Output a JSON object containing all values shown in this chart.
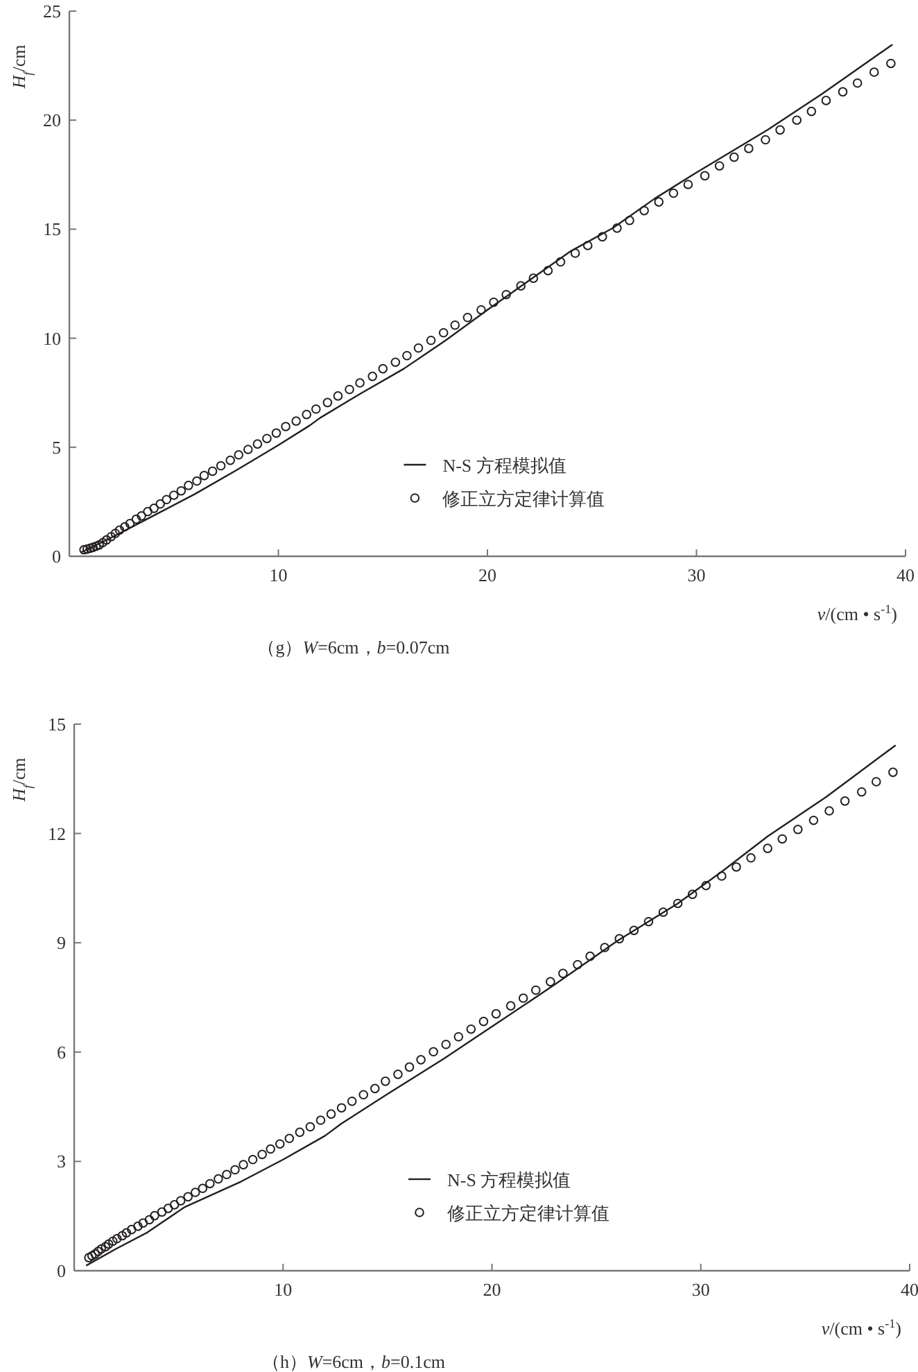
{
  "chart_data": [
    {
      "type": "line",
      "title": "（g）*W*=6cm，*b*=0.07cm",
      "xlabel": "*v*/(cm • s$^{-1}$)",
      "ylabel": "*H*$_{f}$/cm",
      "xlim": [
        0,
        40
      ],
      "ylim": [
        0,
        25
      ],
      "xticks": [
        10,
        20,
        30,
        40
      ],
      "yticks": [
        0,
        5,
        10,
        15,
        20,
        25
      ],
      "legend": "bottom",
      "series": [
        {
          "name": "N-S 方程模拟值",
          "color": "#231f20",
          "x": [
            0.6,
            2,
            4,
            6,
            8,
            10,
            11.5,
            12,
            14,
            16,
            18,
            20,
            22,
            24,
            26,
            28,
            30,
            33.4,
            36,
            39.35
          ],
          "values": [
            0.2,
            0.85,
            1.85,
            2.85,
            3.95,
            5.1,
            6.0,
            6.35,
            7.5,
            8.6,
            9.9,
            11.3,
            12.65,
            14.0,
            15.05,
            16.4,
            17.6,
            19.55,
            21.2,
            23.45
          ]
        },
        {
          "name": "修正立方定律计算值",
          "type": "scatter",
          "marker": "circle",
          "color": "#231f20",
          "x": [
            0.7,
            0.85,
            1.0,
            1.13,
            1.28,
            1.43,
            1.6,
            1.78,
            2.0,
            2.2,
            2.4,
            2.65,
            2.9,
            3.2,
            3.45,
            3.75,
            4.05,
            4.35,
            4.65,
            5.0,
            5.35,
            5.7,
            6.1,
            6.45,
            6.85,
            7.25,
            7.7,
            8.1,
            8.55,
            9.0,
            9.45,
            9.9,
            10.35,
            10.85,
            11.35,
            11.8,
            12.35,
            12.85,
            13.4,
            13.9,
            14.5,
            15.0,
            15.6,
            16.15,
            16.7,
            17.3,
            17.9,
            18.45,
            19.05,
            19.7,
            20.3,
            20.9,
            21.6,
            22.2,
            22.9,
            23.5,
            24.2,
            24.8,
            25.5,
            26.2,
            26.8,
            27.5,
            28.2,
            28.9,
            29.6,
            30.4,
            31.1,
            31.8,
            32.5,
            33.3,
            34.0,
            34.8,
            35.5,
            36.2,
            37.0,
            37.7,
            38.5,
            39.3
          ],
          "values": [
            0.3,
            0.33,
            0.37,
            0.41,
            0.46,
            0.52,
            0.63,
            0.75,
            0.9,
            1.05,
            1.2,
            1.35,
            1.5,
            1.7,
            1.85,
            2.05,
            2.2,
            2.4,
            2.6,
            2.8,
            3.0,
            3.25,
            3.45,
            3.7,
            3.9,
            4.15,
            4.4,
            4.65,
            4.9,
            5.15,
            5.4,
            5.65,
            5.95,
            6.2,
            6.5,
            6.75,
            7.05,
            7.35,
            7.65,
            7.95,
            8.25,
            8.6,
            8.9,
            9.2,
            9.55,
            9.9,
            10.25,
            10.6,
            10.95,
            11.3,
            11.65,
            12.0,
            12.4,
            12.75,
            13.1,
            13.5,
            13.9,
            14.25,
            14.65,
            15.05,
            15.4,
            15.85,
            16.25,
            16.65,
            17.05,
            17.45,
            17.9,
            18.3,
            18.7,
            19.1,
            19.55,
            20.0,
            20.4,
            20.9,
            21.3,
            21.7,
            22.2,
            22.6
          ]
        }
      ]
    },
    {
      "type": "line",
      "title": "（h）*W*=6cm，*b*=0.1cm",
      "xlabel": "*v*/(cm • s$^{-1}$)",
      "ylabel": "*H*$_{f}$/cm",
      "xlim": [
        0,
        40
      ],
      "ylim": [
        0,
        15
      ],
      "xticks": [
        10,
        20,
        30,
        40
      ],
      "yticks": [
        0,
        3,
        6,
        9,
        12,
        15
      ],
      "legend": "bottom",
      "series": [
        {
          "name": "N-S 方程模拟值",
          "color": "#231f20",
          "x": [
            0.6,
            2,
            3.5,
            5.3,
            8,
            10,
            12,
            12.8,
            15,
            17.7,
            20,
            23,
            26,
            28.9,
            31,
            33.2,
            36,
            39.3
          ],
          "values": [
            0.15,
            0.6,
            1.05,
            1.75,
            2.45,
            3.05,
            3.7,
            4.04,
            4.85,
            5.82,
            6.7,
            7.85,
            9.05,
            10.08,
            10.95,
            11.92,
            13.0,
            14.41
          ]
        },
        {
          "name": "修正立方定律计算值",
          "type": "scatter",
          "marker": "circle",
          "color": "#231f20",
          "x": [
            0.7,
            0.85,
            1.0,
            1.15,
            1.3,
            1.5,
            1.65,
            1.85,
            2.05,
            2.3,
            2.5,
            2.75,
            3.05,
            3.3,
            3.6,
            3.85,
            4.2,
            4.5,
            4.8,
            5.1,
            5.45,
            5.8,
            6.15,
            6.5,
            6.9,
            7.3,
            7.7,
            8.1,
            8.55,
            9.0,
            9.4,
            9.85,
            10.3,
            10.8,
            11.3,
            11.8,
            12.3,
            12.8,
            13.3,
            13.85,
            14.4,
            14.9,
            15.5,
            16.05,
            16.6,
            17.2,
            17.8,
            18.4,
            19.0,
            19.6,
            20.2,
            20.9,
            21.5,
            22.1,
            22.8,
            23.4,
            24.1,
            24.7,
            25.4,
            26.1,
            26.8,
            27.5,
            28.2,
            28.9,
            29.6,
            30.25,
            31.0,
            31.7,
            32.4,
            33.2,
            33.9,
            34.65,
            35.4,
            36.15,
            36.9,
            37.7,
            38.4,
            39.2
          ],
          "values": [
            0.36,
            0.41,
            0.46,
            0.53,
            0.6,
            0.66,
            0.73,
            0.81,
            0.88,
            0.96,
            1.04,
            1.13,
            1.22,
            1.31,
            1.4,
            1.51,
            1.61,
            1.71,
            1.81,
            1.92,
            2.03,
            2.15,
            2.26,
            2.39,
            2.52,
            2.64,
            2.77,
            2.91,
            3.05,
            3.19,
            3.34,
            3.48,
            3.63,
            3.8,
            3.95,
            4.13,
            4.3,
            4.47,
            4.65,
            4.83,
            5.0,
            5.2,
            5.39,
            5.59,
            5.79,
            6.01,
            6.21,
            6.42,
            6.63,
            6.84,
            7.05,
            7.27,
            7.48,
            7.7,
            7.93,
            8.16,
            8.4,
            8.63,
            8.87,
            9.11,
            9.34,
            9.58,
            9.84,
            10.08,
            10.33,
            10.57,
            10.83,
            11.08,
            11.33,
            11.59,
            11.85,
            12.11,
            12.36,
            12.62,
            12.89,
            13.14,
            13.42,
            13.68
          ]
        }
      ]
    }
  ]
}
